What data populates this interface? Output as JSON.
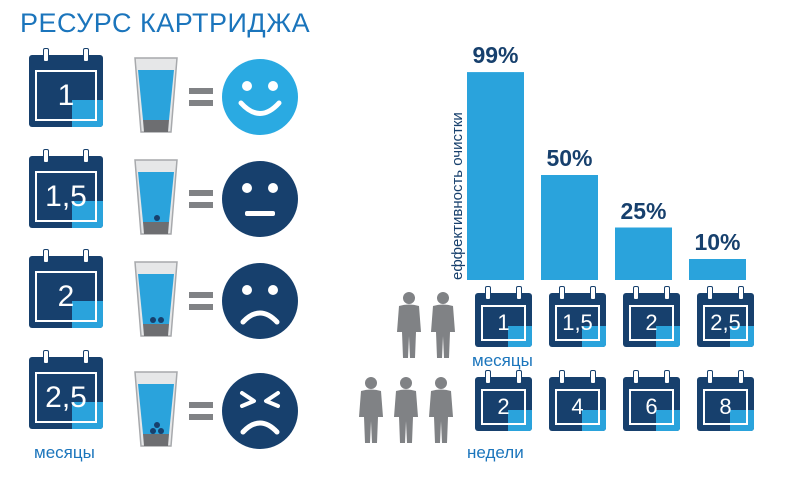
{
  "title": "РЕСУРС КАРТРИДЖА",
  "left_panel": {
    "rows": [
      {
        "months": "1",
        "mood": "happy",
        "impurity_dots": 0
      },
      {
        "months": "1,5",
        "mood": "neutral",
        "impurity_dots": 1
      },
      {
        "months": "2",
        "mood": "sad",
        "impurity_dots": 2
      },
      {
        "months": "2,5",
        "mood": "disgusted",
        "impurity_dots": 3
      }
    ],
    "caption": "месяцы"
  },
  "chart_data": {
    "type": "bar",
    "ylabel": "еффективность очистки",
    "categories": [
      "1",
      "1,5",
      "2",
      "2,5"
    ],
    "values": [
      99,
      50,
      25,
      10
    ],
    "value_labels": [
      "99%",
      "50%",
      "25%",
      "10%"
    ],
    "ylim": [
      0,
      100
    ],
    "category_caption": "месяцы",
    "weeks_for_three_people": [
      "2",
      "4",
      "6",
      "8"
    ],
    "weeks_caption": "недели"
  },
  "colors": {
    "navy": "#17406d",
    "blue": "#2aa3dc",
    "gray": "#808285",
    "happy_face": "#2aaae2",
    "sad_face": "#17406d"
  }
}
